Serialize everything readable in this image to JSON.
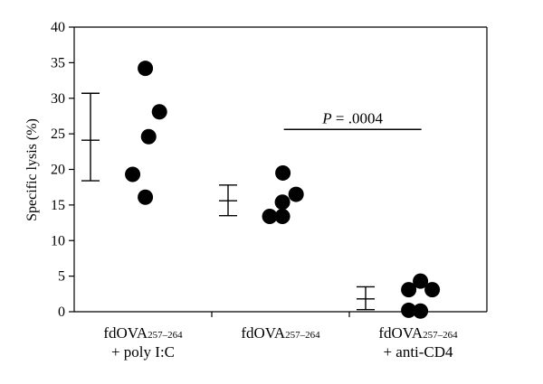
{
  "chart_data": {
    "type": "scatter",
    "ylabel": "Specific lysis (%)",
    "ylim": [
      0,
      40
    ],
    "yticks": [
      0,
      5,
      10,
      15,
      20,
      25,
      30,
      35,
      40
    ],
    "grid": false,
    "categories": [
      {
        "main": "fdOVA",
        "sub": "257–264",
        "line2": "+ poly I:C"
      },
      {
        "main": "fdOVA",
        "sub": "257–264",
        "line2": ""
      },
      {
        "main": "fdOVA",
        "sub": "257–264",
        "line2": "+ anti-CD4"
      }
    ],
    "groups": [
      {
        "points": [
          {
            "y": 34.2,
            "offset": 0.05
          },
          {
            "y": 28.1,
            "offset": 0.35
          },
          {
            "y": 24.6,
            "offset": 0.12
          },
          {
            "y": 19.3,
            "offset": -0.22
          },
          {
            "y": 16.1,
            "offset": 0.05
          }
        ],
        "summary": {
          "center": 24.1,
          "low": 18.4,
          "high": 30.7
        }
      },
      {
        "points": [
          {
            "y": 19.5,
            "offset": 0.05
          },
          {
            "y": 16.5,
            "offset": 0.33
          },
          {
            "y": 15.4,
            "offset": 0.04
          },
          {
            "y": 13.4,
            "offset": -0.23
          },
          {
            "y": 13.4,
            "offset": 0.04
          }
        ],
        "summary": {
          "center": 15.6,
          "low": 13.5,
          "high": 17.8
        }
      },
      {
        "points": [
          {
            "y": 4.3,
            "offset": 0.05
          },
          {
            "y": 3.1,
            "offset": -0.2
          },
          {
            "y": 3.1,
            "offset": 0.3
          },
          {
            "y": 0.2,
            "offset": -0.2
          },
          {
            "y": 0.1,
            "offset": 0.05
          }
        ],
        "summary": {
          "center": 1.8,
          "low": 0.3,
          "high": 3.5
        }
      }
    ],
    "annotation": {
      "prefix": "P",
      "text": " = .0004",
      "y": 26,
      "from_group": 1,
      "to_group": 2
    }
  }
}
